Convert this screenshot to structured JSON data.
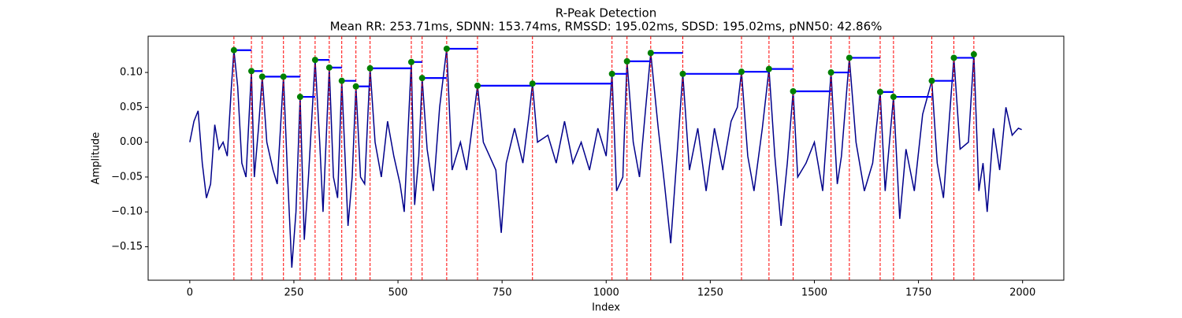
{
  "chart_data": {
    "type": "line",
    "title": "R-Peak Detection",
    "subtitle": "Mean RR: 253.71ms, SDNN: 153.74ms, RMSSD: 195.02ms, SDSD: 195.02ms, pNN50: 42.86%",
    "x_label": "Index",
    "y_label": "Amplitude",
    "xlim": [
      -100,
      2099
    ],
    "ylim": [
      -0.198,
      0.152
    ],
    "xticks": [
      0,
      250,
      500,
      750,
      1000,
      1250,
      1500,
      1750,
      2000
    ],
    "yticks": [
      {
        "value": -0.15,
        "label": "−0.15"
      },
      {
        "value": -0.1,
        "label": "−0.10"
      },
      {
        "value": -0.05,
        "label": "−0.05"
      },
      {
        "value": 0,
        "label": "0.00"
      },
      {
        "value": 0.05,
        "label": "0.05"
      },
      {
        "value": 0.1,
        "label": "0.10"
      }
    ],
    "series": [
      {
        "color": "#00008b",
        "x": [
          0,
          10,
          20,
          30,
          40,
          50,
          60,
          70,
          80,
          90,
          100,
          106,
          115,
          125,
          135,
          148,
          155,
          165,
          174,
          185,
          200,
          210,
          225,
          235,
          245,
          255,
          265,
          275,
          285,
          301,
          312,
          320,
          335,
          345,
          355,
          365,
          380,
          390,
          399,
          410,
          420,
          433,
          445,
          460,
          475,
          490,
          505,
          515,
          532,
          540,
          550,
          558,
          570,
          585,
          600,
          617,
          630,
          650,
          665,
          680,
          691,
          705,
          720,
          735,
          748,
          760,
          780,
          800,
          815,
          823,
          835,
          860,
          880,
          900,
          920,
          940,
          960,
          980,
          1000,
          1014,
          1025,
          1040,
          1050,
          1065,
          1080,
          1095,
          1107,
          1125,
          1140,
          1155,
          1170,
          1184,
          1200,
          1220,
          1240,
          1260,
          1280,
          1300,
          1315,
          1325,
          1340,
          1355,
          1375,
          1391,
          1405,
          1420,
          1435,
          1449,
          1460,
          1480,
          1500,
          1520,
          1540,
          1555,
          1565,
          1584,
          1600,
          1620,
          1640,
          1658,
          1670,
          1690,
          1705,
          1720,
          1740,
          1760,
          1782,
          1795,
          1810,
          1835,
          1850,
          1870,
          1883,
          1895,
          1905,
          1915,
          1930,
          1945,
          1960,
          1975,
          1990,
          1998
        ],
        "values": [
          0.0,
          0.03,
          0.045,
          -0.03,
          -0.08,
          -0.06,
          0.025,
          -0.01,
          0.0,
          -0.02,
          0.08,
          0.132,
          0.08,
          -0.03,
          -0.05,
          0.102,
          -0.05,
          0.02,
          0.094,
          0.0,
          -0.04,
          -0.06,
          0.094,
          -0.05,
          -0.18,
          -0.1,
          0.065,
          -0.14,
          -0.05,
          0.118,
          0.0,
          -0.1,
          0.107,
          -0.05,
          -0.08,
          0.088,
          -0.12,
          -0.05,
          0.08,
          -0.05,
          -0.06,
          0.106,
          0.0,
          -0.05,
          0.03,
          -0.02,
          -0.06,
          -0.1,
          0.115,
          -0.09,
          -0.02,
          0.092,
          -0.01,
          -0.07,
          0.05,
          0.134,
          -0.04,
          0.0,
          -0.04,
          0.03,
          0.081,
          0.0,
          -0.02,
          -0.04,
          -0.13,
          -0.03,
          0.02,
          -0.03,
          0.04,
          0.084,
          0.0,
          0.01,
          -0.03,
          0.03,
          -0.03,
          0.0,
          -0.04,
          0.02,
          -0.02,
          0.098,
          -0.07,
          -0.05,
          0.116,
          0.0,
          -0.05,
          0.05,
          0.128,
          0.02,
          -0.06,
          -0.145,
          -0.02,
          0.098,
          -0.04,
          0.02,
          -0.07,
          0.02,
          -0.04,
          0.03,
          0.05,
          0.101,
          -0.02,
          -0.07,
          0.02,
          0.105,
          -0.02,
          -0.12,
          -0.03,
          0.073,
          -0.05,
          -0.03,
          0.0,
          -0.07,
          0.1,
          -0.06,
          -0.02,
          0.121,
          0.0,
          -0.07,
          -0.03,
          0.072,
          -0.07,
          0.065,
          -0.11,
          -0.01,
          -0.07,
          0.04,
          0.088,
          -0.03,
          -0.08,
          0.121,
          -0.01,
          0.0,
          0.126,
          -0.07,
          -0.03,
          -0.1,
          0.02,
          -0.04,
          0.05,
          0.01,
          0.02,
          0.018
        ]
      }
    ],
    "peaks": {
      "color": "green",
      "line_color": "red",
      "interval_color": "blue",
      "x": [
        106,
        148,
        174,
        225,
        265,
        301,
        335,
        365,
        399,
        433,
        532,
        558,
        617,
        691,
        823,
        1014,
        1050,
        1107,
        1184,
        1325,
        1391,
        1449,
        1540,
        1584,
        1658,
        1690,
        1782,
        1835,
        1883
      ],
      "values": [
        0.132,
        0.102,
        0.094,
        0.094,
        0.065,
        0.118,
        0.107,
        0.088,
        0.08,
        0.106,
        0.115,
        0.092,
        0.134,
        0.081,
        0.084,
        0.098,
        0.116,
        0.128,
        0.098,
        0.101,
        0.105,
        0.073,
        0.1,
        0.121,
        0.072,
        0.065,
        0.088,
        0.121,
        0.126
      ]
    }
  }
}
